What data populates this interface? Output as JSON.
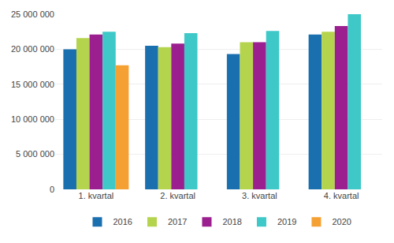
{
  "chart_data": {
    "type": "bar",
    "categories": [
      "1. kvartal",
      "2. kvartal",
      "3. kvartal",
      "4. kvartal"
    ],
    "series": [
      {
        "name": "2016",
        "color": "#1a6faf",
        "values": [
          20000000,
          20500000,
          19300000,
          22100000
        ]
      },
      {
        "name": "2017",
        "color": "#b5d44e",
        "values": [
          21600000,
          20300000,
          21000000,
          22500000
        ]
      },
      {
        "name": "2018",
        "color": "#9b1f8e",
        "values": [
          22100000,
          20800000,
          21000000,
          23300000
        ]
      },
      {
        "name": "2019",
        "color": "#3ec8c8",
        "values": [
          22500000,
          22300000,
          22600000,
          25000000
        ]
      },
      {
        "name": "2020",
        "color": "#f5a033",
        "values": [
          17700000,
          null,
          null,
          null
        ]
      }
    ],
    "ylim": [
      0,
      25000000
    ],
    "yticks": [
      0,
      {
        "value": 5000000,
        "label": "5 000 000"
      },
      {
        "value": 10000000,
        "label": "10 000 000"
      },
      {
        "value": 15000000,
        "label": "15 000 000"
      },
      {
        "value": 20000000,
        "label": "20 000 000"
      },
      {
        "value": 25000000,
        "label": "25 000 000"
      }
    ],
    "grid": true,
    "legend": "bottom"
  }
}
